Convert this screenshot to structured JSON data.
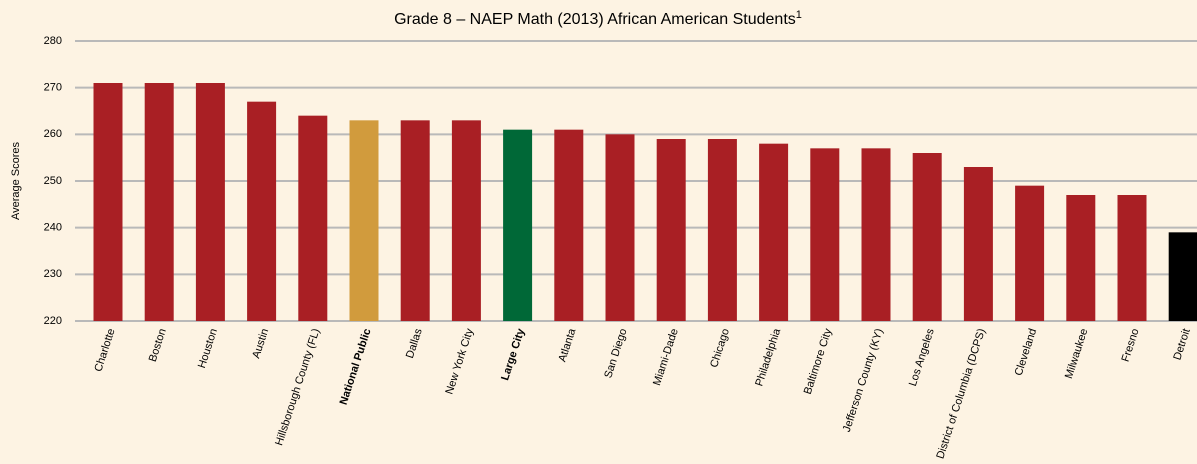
{
  "chart_data": {
    "type": "bar",
    "title": "Grade 8 – NAEP Math (2013) African American Students",
    "title_footnote": "1",
    "y_label": "Average Scores",
    "categories": [
      "Charlotte",
      "Boston",
      "Houston",
      "Austin",
      "Hillsborough County (FL)",
      "National Public",
      "Dallas",
      "New York City",
      "Large City",
      "Atlanta",
      "San Diego",
      "Miami-Dade",
      "Chicago",
      "Philadelphia",
      "Baltimore City",
      "Jefferson County (KY)",
      "Los Angeles",
      "District of Columbia (DCPS)",
      "Cleveland",
      "Milwaukee",
      "Fresno",
      "Detroit"
    ],
    "values": [
      271,
      271,
      271,
      267,
      264,
      263,
      263,
      263,
      261,
      261,
      260,
      259,
      259,
      258,
      257,
      257,
      256,
      253,
      249,
      247,
      247,
      239
    ],
    "colors": [
      "#a91f24",
      "#a91f24",
      "#a91f24",
      "#a91f24",
      "#a91f24",
      "#d19b3d",
      "#a91f24",
      "#a91f24",
      "#006837",
      "#a91f24",
      "#a91f24",
      "#a91f24",
      "#a91f24",
      "#a91f24",
      "#a91f24",
      "#a91f24",
      "#a91f24",
      "#a91f24",
      "#a91f24",
      "#a91f24",
      "#a91f24",
      "#000000"
    ],
    "bold_categories": [
      5,
      8
    ],
    "ylim": [
      220,
      280
    ],
    "yticks": [
      220,
      230,
      240,
      250,
      260,
      270,
      280
    ],
    "grid": true
  }
}
